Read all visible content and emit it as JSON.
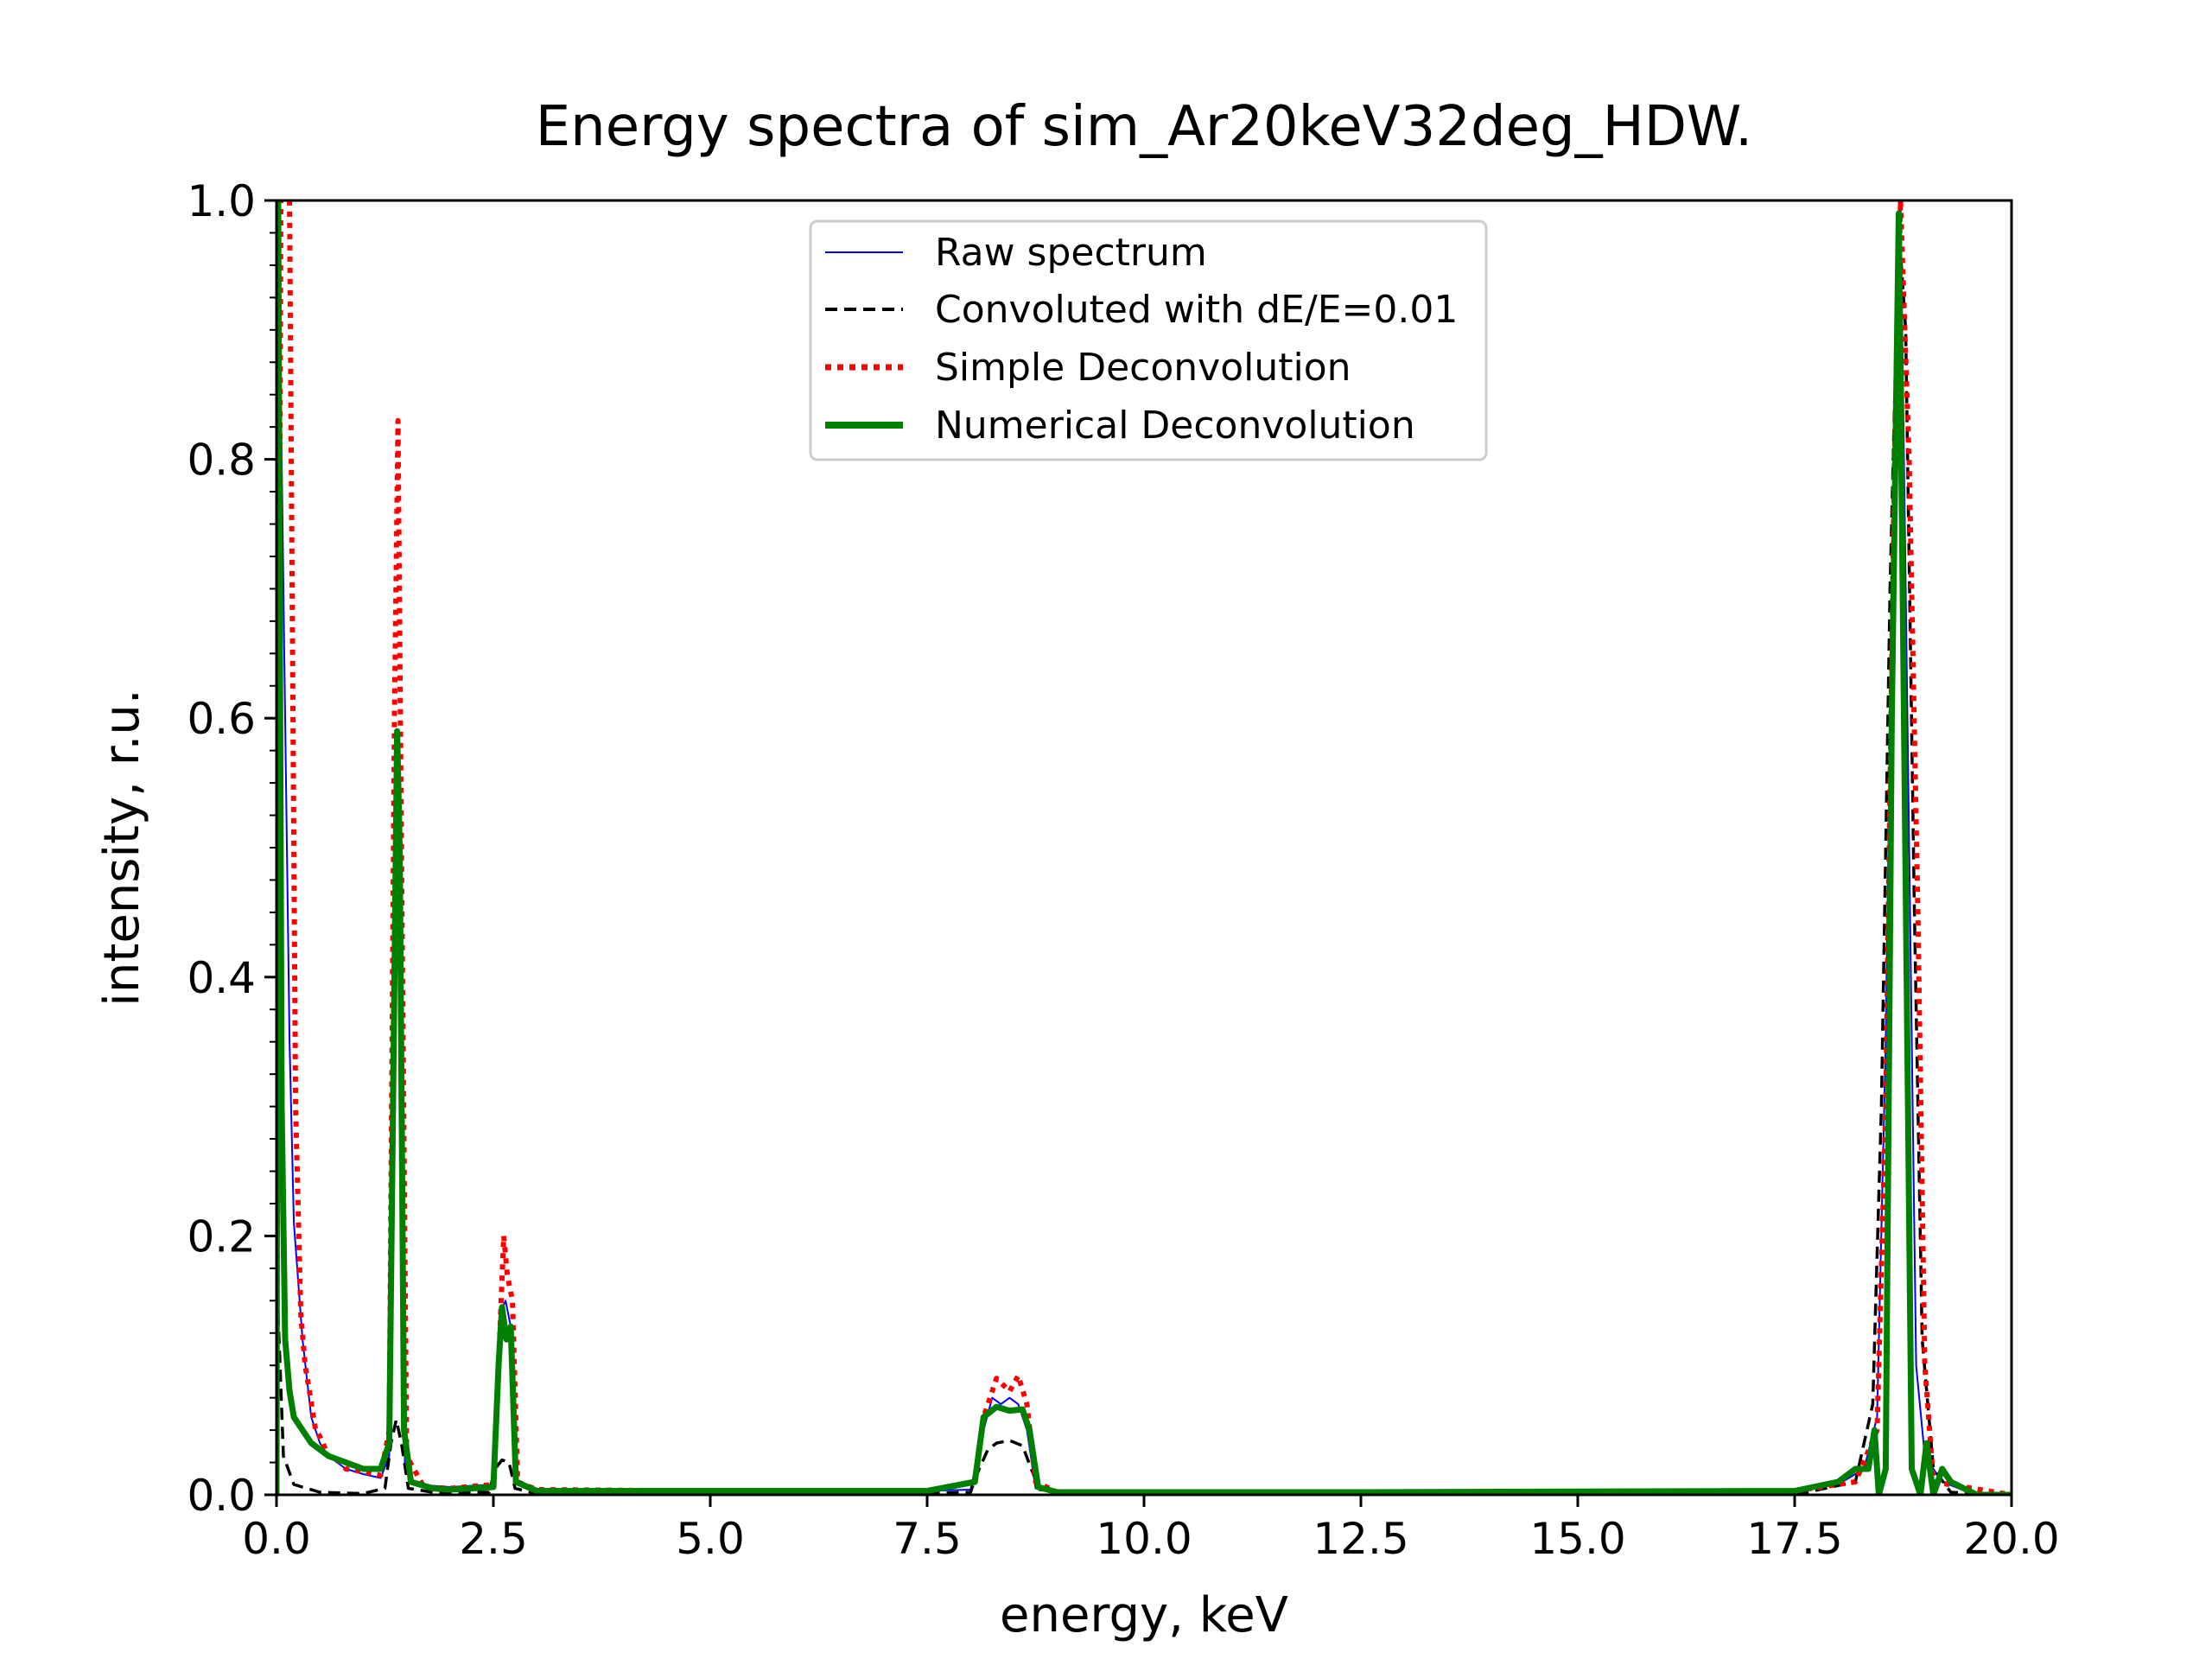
{
  "chart_data": {
    "type": "line",
    "title": "Energy spectra of sim_Ar20keV32deg_HDW.",
    "xlabel": "energy, keV",
    "ylabel": "intensity, r.u.",
    "xlim": [
      0.0,
      20.0
    ],
    "ylim": [
      0.0,
      1.0
    ],
    "x_ticks": [
      "0.0",
      "2.5",
      "5.0",
      "7.5",
      "10.0",
      "12.5",
      "15.0",
      "17.5",
      "20.0"
    ],
    "y_ticks": [
      "0.0",
      "0.2",
      "0.4",
      "0.6",
      "0.8",
      "1.0"
    ],
    "grid": false,
    "legend_position": "top-center",
    "series": [
      {
        "name": "Raw spectrum",
        "color": "#0000ff",
        "style": "solid-thin",
        "points": [
          [
            0.0,
            0.0
          ],
          [
            0.02,
            1.0
          ],
          [
            0.1,
            0.6
          ],
          [
            0.15,
            0.35
          ],
          [
            0.2,
            0.21
          ],
          [
            0.3,
            0.12
          ],
          [
            0.4,
            0.06
          ],
          [
            0.5,
            0.04
          ],
          [
            0.6,
            0.03
          ],
          [
            0.8,
            0.02
          ],
          [
            1.0,
            0.016
          ],
          [
            1.2,
            0.013
          ],
          [
            1.3,
            0.03
          ],
          [
            1.38,
            0.58
          ],
          [
            1.42,
            0.5
          ],
          [
            1.48,
            0.02
          ],
          [
            1.6,
            0.008
          ],
          [
            2.0,
            0.006
          ],
          [
            2.5,
            0.008
          ],
          [
            2.58,
            0.14
          ],
          [
            2.64,
            0.15
          ],
          [
            2.7,
            0.13
          ],
          [
            2.75,
            0.01
          ],
          [
            3.0,
            0.004
          ],
          [
            5.0,
            0.003
          ],
          [
            7.5,
            0.003
          ],
          [
            8.0,
            0.004
          ],
          [
            8.15,
            0.05
          ],
          [
            8.25,
            0.075
          ],
          [
            8.35,
            0.07
          ],
          [
            8.45,
            0.075
          ],
          [
            8.55,
            0.07
          ],
          [
            8.65,
            0.05
          ],
          [
            8.75,
            0.005
          ],
          [
            9.0,
            0.002
          ],
          [
            12.5,
            0.002
          ],
          [
            17.5,
            0.003
          ],
          [
            18.0,
            0.008
          ],
          [
            18.3,
            0.02
          ],
          [
            18.45,
            0.06
          ],
          [
            18.55,
            0.35
          ],
          [
            18.65,
            0.85
          ],
          [
            18.72,
            1.0
          ],
          [
            18.8,
            0.6
          ],
          [
            18.9,
            0.1
          ],
          [
            19.0,
            0.03
          ],
          [
            19.2,
            0.01
          ],
          [
            19.5,
            0.002
          ],
          [
            20.0,
            0.0
          ]
        ]
      },
      {
        "name": "Convoluted with dE/E=0.01",
        "color": "#000000",
        "style": "dashed",
        "points": [
          [
            0.0,
            0.17
          ],
          [
            0.03,
            0.12
          ],
          [
            0.08,
            0.03
          ],
          [
            0.2,
            0.008
          ],
          [
            0.5,
            0.002
          ],
          [
            1.0,
            0.001
          ],
          [
            1.25,
            0.005
          ],
          [
            1.32,
            0.04
          ],
          [
            1.38,
            0.058
          ],
          [
            1.44,
            0.04
          ],
          [
            1.52,
            0.005
          ],
          [
            1.8,
            0.002
          ],
          [
            2.45,
            0.002
          ],
          [
            2.52,
            0.02
          ],
          [
            2.6,
            0.027
          ],
          [
            2.68,
            0.025
          ],
          [
            2.75,
            0.005
          ],
          [
            3.0,
            0.001
          ],
          [
            7.5,
            0.001
          ],
          [
            8.0,
            0.002
          ],
          [
            8.1,
            0.02
          ],
          [
            8.2,
            0.035
          ],
          [
            8.3,
            0.04
          ],
          [
            8.45,
            0.042
          ],
          [
            8.6,
            0.038
          ],
          [
            8.7,
            0.02
          ],
          [
            8.8,
            0.004
          ],
          [
            9.5,
            0.0
          ],
          [
            17.5,
            0.0
          ],
          [
            18.2,
            0.01
          ],
          [
            18.4,
            0.07
          ],
          [
            18.5,
            0.3
          ],
          [
            18.6,
            0.7
          ],
          [
            18.7,
            0.98
          ],
          [
            18.78,
            0.9
          ],
          [
            18.88,
            0.45
          ],
          [
            18.97,
            0.12
          ],
          [
            19.1,
            0.02
          ],
          [
            19.3,
            0.002
          ],
          [
            20.0,
            0.0
          ]
        ]
      },
      {
        "name": "Simple Deconvolution",
        "color": "#ff0000",
        "style": "dotted",
        "points": [
          [
            0.0,
            0.0
          ],
          [
            0.05,
            1.0
          ],
          [
            0.15,
            1.0
          ],
          [
            0.18,
            0.7
          ],
          [
            0.22,
            0.3
          ],
          [
            0.28,
            0.14
          ],
          [
            0.33,
            0.1
          ],
          [
            0.38,
            0.08
          ],
          [
            0.45,
            0.05
          ],
          [
            0.5,
            0.045
          ],
          [
            0.6,
            0.03
          ],
          [
            0.7,
            0.028
          ],
          [
            0.8,
            0.02
          ],
          [
            1.0,
            0.018
          ],
          [
            1.2,
            0.015
          ],
          [
            1.3,
            0.05
          ],
          [
            1.36,
            0.6
          ],
          [
            1.4,
            0.83
          ],
          [
            1.44,
            0.5
          ],
          [
            1.5,
            0.03
          ],
          [
            1.7,
            0.006
          ],
          [
            2.0,
            0.005
          ],
          [
            2.5,
            0.008
          ],
          [
            2.56,
            0.1
          ],
          [
            2.62,
            0.2
          ],
          [
            2.66,
            0.17
          ],
          [
            2.72,
            0.15
          ],
          [
            2.78,
            0.01
          ],
          [
            3.0,
            0.004
          ],
          [
            5.0,
            0.003
          ],
          [
            7.5,
            0.003
          ],
          [
            8.05,
            0.01
          ],
          [
            8.15,
            0.06
          ],
          [
            8.3,
            0.09
          ],
          [
            8.45,
            0.08
          ],
          [
            8.55,
            0.092
          ],
          [
            8.65,
            0.07
          ],
          [
            8.75,
            0.01
          ],
          [
            9.0,
            0.002
          ],
          [
            12.5,
            0.002
          ],
          [
            17.5,
            0.003
          ],
          [
            18.2,
            0.01
          ],
          [
            18.45,
            0.05
          ],
          [
            18.55,
            0.3
          ],
          [
            18.65,
            0.8
          ],
          [
            18.72,
            1.0
          ],
          [
            18.82,
            0.8
          ],
          [
            18.92,
            0.45
          ],
          [
            19.0,
            0.1
          ],
          [
            19.1,
            0.01
          ],
          [
            20.0,
            0.0
          ]
        ]
      },
      {
        "name": "Numerical Deconvolution",
        "color": "#008000",
        "style": "solid-thick",
        "points": [
          [
            0.0,
            0.0
          ],
          [
            0.02,
            1.0
          ],
          [
            0.06,
            0.3
          ],
          [
            0.1,
            0.12
          ],
          [
            0.15,
            0.08
          ],
          [
            0.2,
            0.06
          ],
          [
            0.3,
            0.05
          ],
          [
            0.4,
            0.04
          ],
          [
            0.5,
            0.035
          ],
          [
            0.6,
            0.03
          ],
          [
            0.8,
            0.025
          ],
          [
            1.0,
            0.02
          ],
          [
            1.2,
            0.02
          ],
          [
            1.3,
            0.04
          ],
          [
            1.36,
            0.4
          ],
          [
            1.39,
            0.59
          ],
          [
            1.42,
            0.5
          ],
          [
            1.47,
            0.05
          ],
          [
            1.55,
            0.01
          ],
          [
            1.8,
            0.005
          ],
          [
            2.0,
            0.004
          ],
          [
            2.5,
            0.006
          ],
          [
            2.56,
            0.1
          ],
          [
            2.6,
            0.145
          ],
          [
            2.65,
            0.12
          ],
          [
            2.7,
            0.13
          ],
          [
            2.76,
            0.01
          ],
          [
            3.0,
            0.003
          ],
          [
            5.0,
            0.003
          ],
          [
            7.5,
            0.003
          ],
          [
            8.05,
            0.01
          ],
          [
            8.15,
            0.06
          ],
          [
            8.3,
            0.068
          ],
          [
            8.45,
            0.065
          ],
          [
            8.6,
            0.066
          ],
          [
            8.68,
            0.05
          ],
          [
            8.78,
            0.006
          ],
          [
            9.0,
            0.002
          ],
          [
            12.5,
            0.002
          ],
          [
            17.5,
            0.003
          ],
          [
            18.0,
            0.01
          ],
          [
            18.2,
            0.02
          ],
          [
            18.35,
            0.02
          ],
          [
            18.42,
            0.05
          ],
          [
            18.47,
            0.0
          ],
          [
            18.55,
            0.02
          ],
          [
            18.62,
            0.6
          ],
          [
            18.7,
            0.99
          ],
          [
            18.76,
            0.6
          ],
          [
            18.85,
            0.02
          ],
          [
            18.95,
            0.0
          ],
          [
            19.02,
            0.04
          ],
          [
            19.1,
            0.0
          ],
          [
            19.2,
            0.02
          ],
          [
            19.3,
            0.01
          ],
          [
            19.45,
            0.005
          ],
          [
            19.6,
            0.0
          ],
          [
            20.0,
            0.0
          ]
        ]
      }
    ]
  }
}
